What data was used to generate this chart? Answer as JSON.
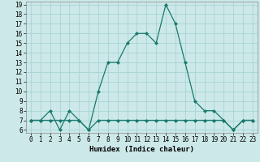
{
  "xlabel": "Humidex (Indice chaleur)",
  "line1_x": [
    0,
    1,
    2,
    3,
    4,
    5,
    6,
    7,
    8,
    9,
    10,
    11,
    12,
    13,
    14,
    15,
    16,
    17,
    18,
    19,
    20,
    21,
    22,
    23
  ],
  "line1_y": [
    7,
    7,
    8,
    6,
    8,
    7,
    6,
    10,
    13,
    13,
    15,
    16,
    16,
    15,
    19,
    17,
    13,
    9,
    8,
    8,
    7,
    6,
    7,
    7
  ],
  "line2_x": [
    0,
    1,
    2,
    3,
    4,
    5,
    6,
    7,
    8,
    9,
    10,
    11,
    12,
    13,
    14,
    15,
    16,
    17,
    18,
    19,
    20,
    21,
    22,
    23
  ],
  "line2_y": [
    7,
    7,
    7,
    7,
    7,
    7,
    6,
    7,
    7,
    7,
    7,
    7,
    7,
    7,
    7,
    7,
    7,
    7,
    7,
    7,
    7,
    6,
    7,
    7
  ],
  "line_color": "#1a7a6e",
  "bg_color": "#cce8e8",
  "grid_color": "#a8d4d4",
  "ylim": [
    6,
    19
  ],
  "xlim": [
    -0.5,
    23.5
  ],
  "yticks": [
    6,
    7,
    8,
    9,
    10,
    11,
    12,
    13,
    14,
    15,
    16,
    17,
    18,
    19
  ],
  "xticks": [
    0,
    1,
    2,
    3,
    4,
    5,
    6,
    7,
    8,
    9,
    10,
    11,
    12,
    13,
    14,
    15,
    16,
    17,
    18,
    19,
    20,
    21,
    22,
    23
  ],
  "tick_fontsize": 5.5,
  "xlabel_fontsize": 6.5,
  "marker_size": 2.0,
  "line_width": 0.9
}
